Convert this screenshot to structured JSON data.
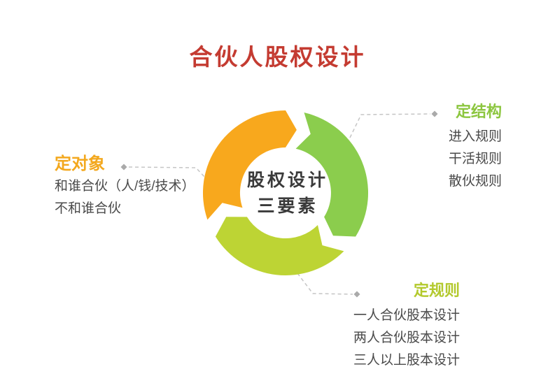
{
  "title": {
    "text": "合伙人股权设计",
    "color": "#c43b31"
  },
  "center_label": {
    "line1": "股权设计",
    "line2": "三要素",
    "color": "#3a3a3a"
  },
  "sections": {
    "object": {
      "heading": "定对象",
      "color": "#f3a81e",
      "items": [
        "和谁合伙（人/钱/技术）",
        "不和谁合伙"
      ]
    },
    "structure": {
      "heading": "定结构",
      "color": "#8cc63f",
      "items": [
        "进入规则",
        "干活规则",
        "散伙规则"
      ]
    },
    "rules": {
      "heading": "定规则",
      "color": "#b3c92d",
      "items": [
        "一人合伙股本设计",
        "两人合伙股本设计",
        "三人以上股本设计"
      ]
    }
  },
  "ring": {
    "segments": [
      {
        "name": "orange-segment",
        "color": "#f8a81d"
      },
      {
        "name": "green-segment",
        "color": "#8bcd4d"
      },
      {
        "name": "lime-segment",
        "color": "#bdd434"
      }
    ]
  },
  "text_color": "#4a4a4a",
  "connector_color": "#c5c5c5",
  "connector_dot_color": "#aaaaaa"
}
